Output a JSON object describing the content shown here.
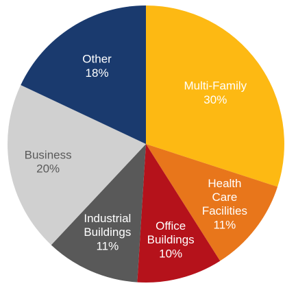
{
  "chart_data": {
    "type": "pie",
    "categories": [
      "Multi-Family",
      "Health Care Facilities",
      "Office Buildings",
      "Industrial Buildings",
      "Business",
      "Other"
    ],
    "values": [
      30,
      11,
      10,
      11,
      20,
      18
    ],
    "value_labels": [
      "30%",
      "11%",
      "10%",
      "11%",
      "20%",
      "18%"
    ],
    "colors": [
      "#fdb913",
      "#e8761b",
      "#b5121b",
      "#595959",
      "#d0d0d0",
      "#1a3a6e"
    ]
  }
}
